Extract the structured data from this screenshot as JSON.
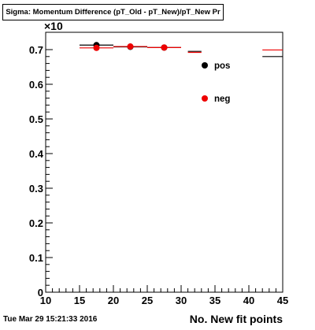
{
  "chart_data": {
    "type": "scatter",
    "title": "Sigma: Momentum Difference (pT_Old - pT_New)/pT_New Pr",
    "xlabel": "No. New fit points",
    "ylabel": "",
    "y_multiplier": "×10",
    "xlim": [
      10,
      45
    ],
    "ylim": [
      0,
      0.75
    ],
    "x_ticks": [
      "10",
      "15",
      "20",
      "25",
      "30",
      "35",
      "40",
      "45"
    ],
    "y_ticks": [
      "0",
      "0.1",
      "0.2",
      "0.3",
      "0.4",
      "0.5",
      "0.6",
      "0.7"
    ],
    "grid": false,
    "legend_position": "right",
    "series": [
      {
        "name": "pos",
        "color": "#000000",
        "marker": "circle",
        "points": [
          {
            "x": 17.5,
            "y": 0.713,
            "xerr": 2.5
          },
          {
            "x": 22.5,
            "y": 0.708,
            "xerr": 2.5
          },
          {
            "x": 27.5,
            "y": 0.706,
            "xerr": 2.5
          },
          {
            "x": 32.0,
            "y": 0.695,
            "xerr": 1.0,
            "marker": false
          },
          {
            "x": 43.5,
            "y": 0.68,
            "xerr": 1.5,
            "marker": false
          }
        ]
      },
      {
        "name": "neg",
        "color": "#ee0000",
        "marker": "circle",
        "points": [
          {
            "x": 17.5,
            "y": 0.705,
            "xerr": 2.5
          },
          {
            "x": 22.5,
            "y": 0.709,
            "xerr": 2.5
          },
          {
            "x": 27.5,
            "y": 0.706,
            "xerr": 2.5
          },
          {
            "x": 32.0,
            "y": 0.692,
            "xerr": 1.0,
            "marker": false
          },
          {
            "x": 43.5,
            "y": 0.699,
            "xerr": 1.5,
            "marker": false
          }
        ]
      }
    ]
  },
  "footer": {
    "timestamp": "Tue Mar 29 15:21:33 2016"
  }
}
